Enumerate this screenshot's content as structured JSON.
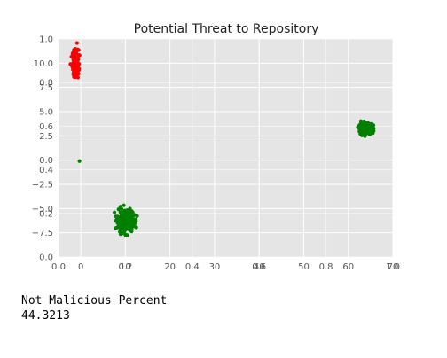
{
  "chart_data": {
    "type": "scatter",
    "title": "Potential Threat to Repository",
    "grid": true,
    "xlabel": "",
    "ylabel": "",
    "background": "#e5e5e5",
    "plot_xlim": [
      -5,
      70
    ],
    "plot_ylim": [
      -10,
      12.5
    ],
    "overlay_xlim": [
      0,
      1
    ],
    "overlay_ylim": [
      0,
      1
    ],
    "x_ticks": [
      0,
      10,
      20,
      30,
      40,
      50,
      60,
      70
    ],
    "x_tick_labels": [
      "0",
      "10",
      "20",
      "30",
      "40",
      "50",
      "60",
      "70"
    ],
    "y_ticks": [
      -7.5,
      -5.0,
      -2.5,
      0.0,
      2.5,
      5.0,
      7.5,
      10.0
    ],
    "y_tick_labels": [
      "−7.5",
      "−5.0",
      "−2.5",
      "0.0",
      "2.5",
      "5.0",
      "7.5",
      "10.0"
    ],
    "overlay_x_ticks": [
      0.0,
      0.2,
      0.4,
      0.6,
      0.8,
      1.0
    ],
    "overlay_x_tick_labels": [
      "0.0",
      "0.2",
      "0.4",
      "0.6",
      "0.8",
      "1.0"
    ],
    "overlay_y_ticks": [
      0.0,
      0.2,
      0.4,
      0.6,
      0.8,
      1.0
    ],
    "overlay_y_tick_labels": [
      "0.0",
      "0.2",
      "0.4",
      "0.6",
      "0.8",
      "1.0"
    ],
    "series": [
      {
        "color": "#ff0000",
        "clusters": [
          {
            "x": -1.2,
            "y": 10.0,
            "sx": 0.35,
            "sy": 0.7,
            "n": 220
          }
        ]
      },
      {
        "color": "#008000",
        "clusters": [
          {
            "x": 10.0,
            "y": -6.3,
            "sx": 0.9,
            "sy": 0.55,
            "n": 320
          },
          {
            "x": 64.0,
            "y": 3.3,
            "sx": 0.8,
            "sy": 0.25,
            "n": 240
          },
          {
            "x": -0.3,
            "y": -0.1,
            "sx": 0,
            "sy": 0,
            "n": 1
          }
        ]
      }
    ]
  },
  "output": {
    "label": "Not Malicious Percent",
    "value": "44.3213"
  }
}
